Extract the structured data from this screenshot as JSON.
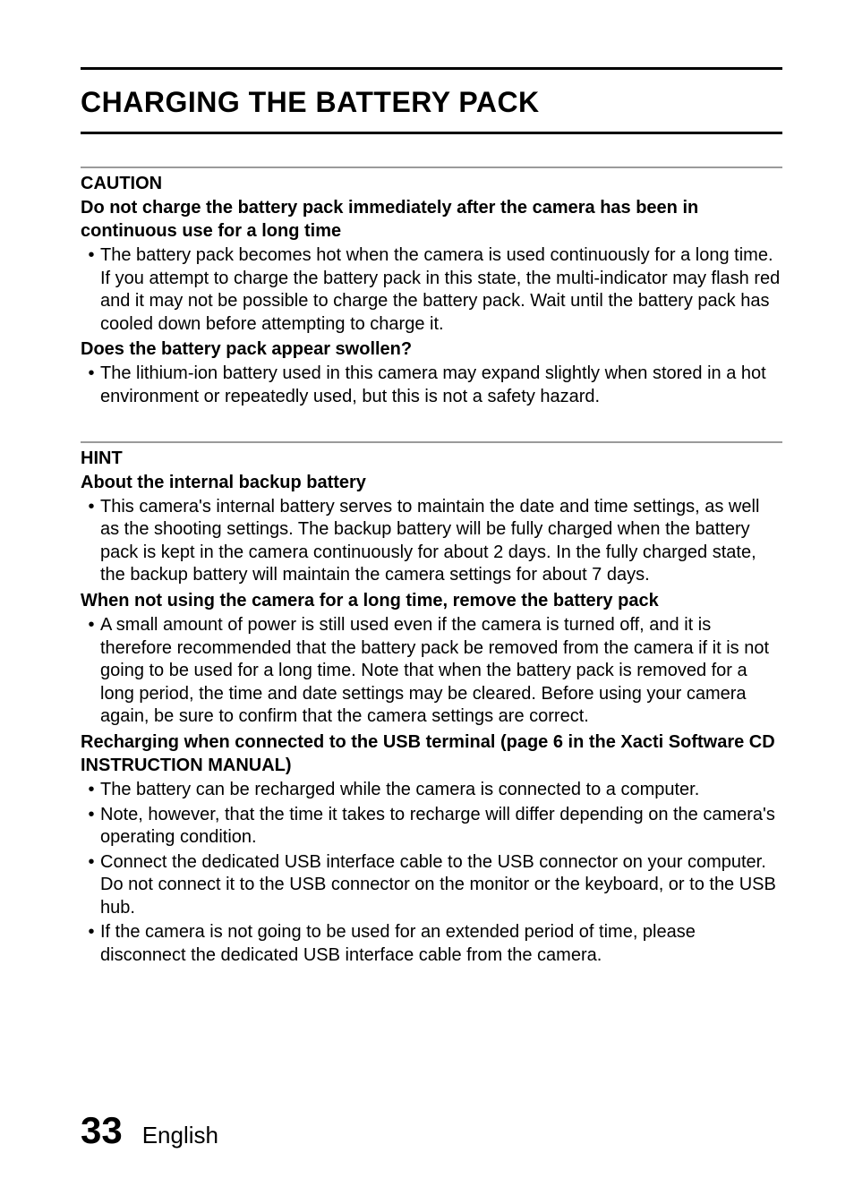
{
  "page": {
    "title": "CHARGING THE BATTERY PACK",
    "caution": {
      "head": "CAUTION",
      "sub1": "Do not charge the battery pack immediately after the camera has been in continuous use for a long time",
      "b1": "The battery pack becomes hot when the camera is used continuously for a long time. If you attempt to charge the battery pack in this state, the multi-indicator may flash red and it may not be possible to charge the battery pack. Wait until the battery pack has cooled down before attempting to charge it.",
      "sub2": "Does the battery pack appear swollen?",
      "b2": "The lithium-ion battery used in this camera may expand slightly when stored in a hot environment or repeatedly used, but this is not a safety hazard."
    },
    "hint": {
      "head": "HINT",
      "sub1": "About the internal backup battery",
      "b1": "This camera's internal battery serves to maintain the date and time settings, as well as the shooting settings. The backup battery will be fully charged when the battery pack is kept in the camera continuously for about 2 days. In the fully charged state, the backup battery will maintain the camera settings for about 7 days.",
      "sub2": "When not using the camera for a long time, remove the battery pack",
      "b2": "A small amount of power is still used even if the camera is turned off, and it is therefore recommended that the battery pack be removed from the camera if it is not going to be used for a long time. Note that when the battery pack is removed for a long period, the time and date settings may be cleared. Before using your camera again, be sure to confirm that the camera settings are correct.",
      "sub3": "Recharging when connected to the USB terminal (page 6 in the Xacti Software CD INSTRUCTION MANUAL)",
      "b3a": "The battery can be recharged while the camera is connected to a computer.",
      "b3b": "Note, however, that the time it takes to recharge will differ depending on the camera's operating condition.",
      "b3c": "Connect the dedicated USB interface cable to the USB connector on your computer. Do not connect it to the USB connector on the monitor or the keyboard, or to the USB hub.",
      "b3d": "If the camera is not going to be used for an extended period of time, please disconnect the dedicated USB interface cable from the camera."
    },
    "footer": {
      "pagenum": "33",
      "label": "English"
    }
  },
  "style": {
    "bg": "#ffffff",
    "ink": "#000000",
    "rule_gray": "#9a9a9a",
    "title_fontsize": 32,
    "body_fontsize": 20,
    "pagenum_fontsize": 42,
    "footer_fontsize": 26
  }
}
